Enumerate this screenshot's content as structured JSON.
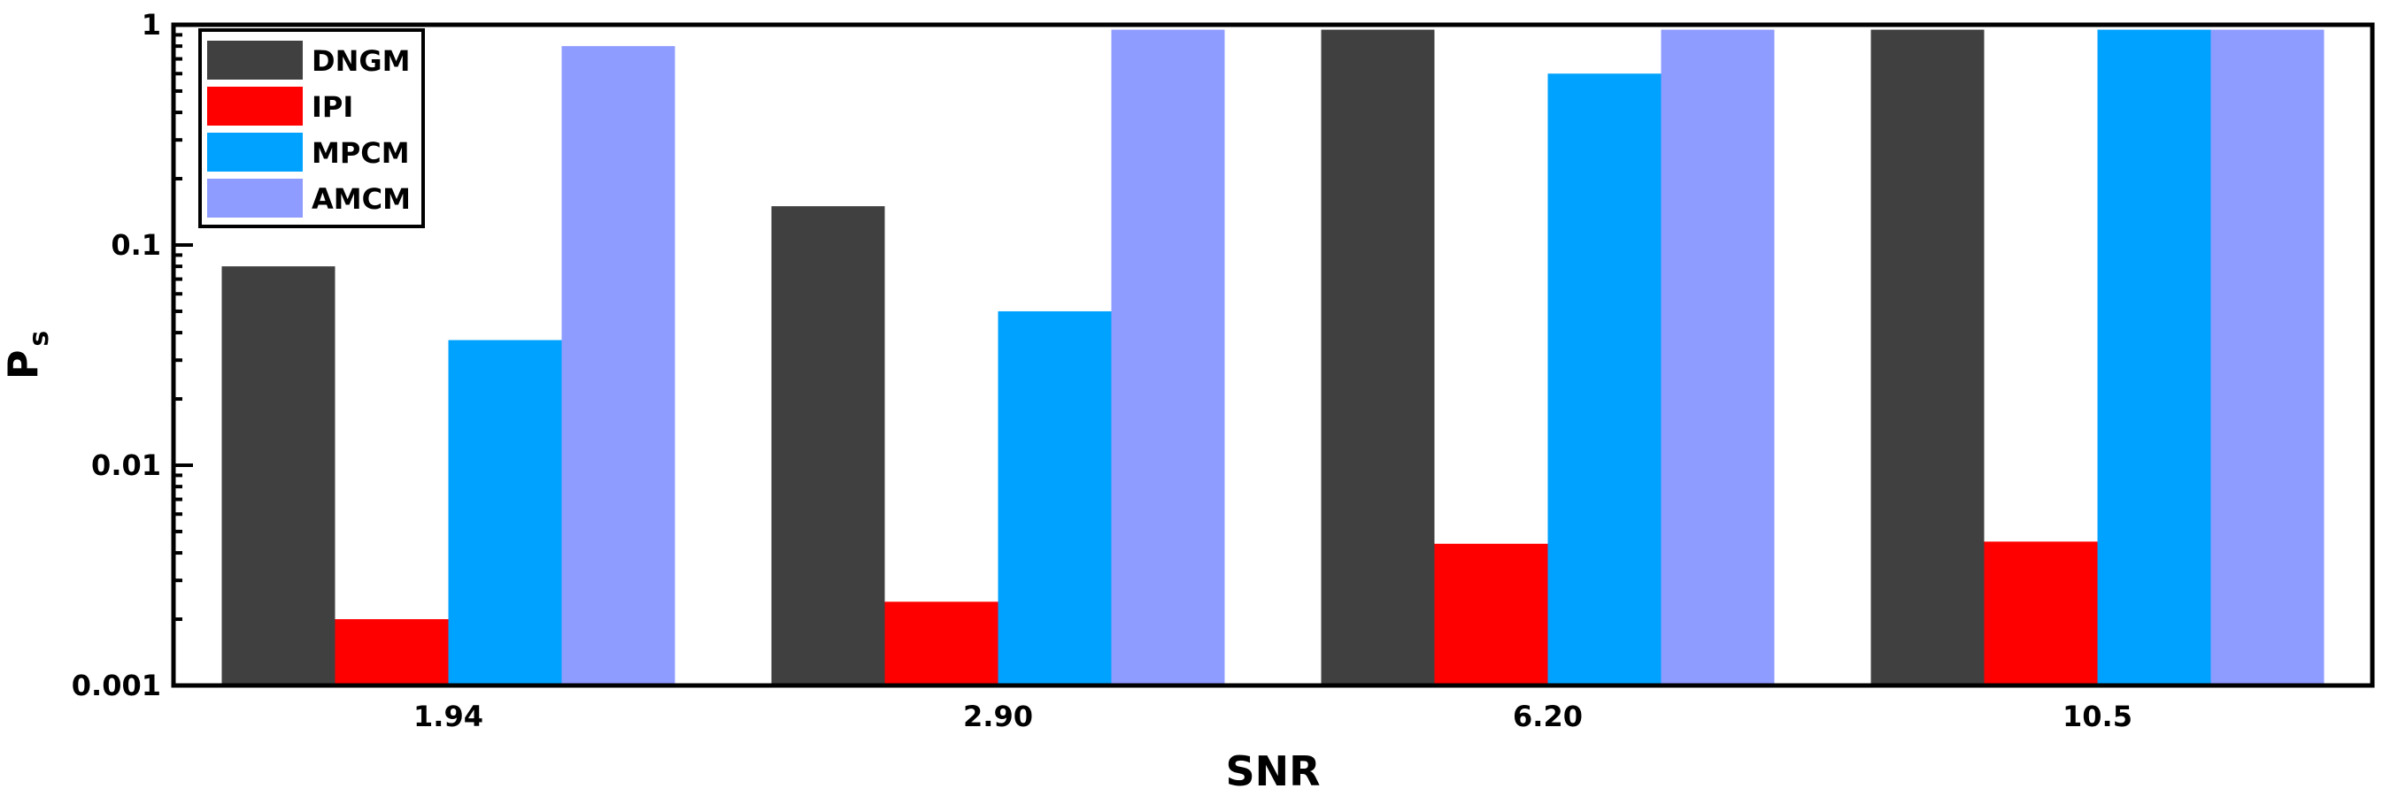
{
  "chart_data": {
    "type": "bar",
    "categories": [
      "1.94",
      "2.90",
      "6.20",
      "10.5"
    ],
    "series": [
      {
        "name": "DNGM",
        "color": "#404040",
        "values": [
          0.08,
          0.15,
          0.95,
          0.95
        ]
      },
      {
        "name": "IPI",
        "color": "#ff0000",
        "values": [
          0.002,
          0.0024,
          0.0044,
          0.0045
        ]
      },
      {
        "name": "MPCM",
        "color": "#00a2ff",
        "values": [
          0.037,
          0.05,
          0.6,
          0.95
        ]
      },
      {
        "name": "AMCM",
        "color": "#8f9cff",
        "values": [
          0.8,
          0.95,
          0.95,
          0.95
        ]
      }
    ],
    "xlabel": "SNR",
    "ylabel": "P",
    "ylabel_sub": "s",
    "yscale": "log",
    "ylim": [
      0.001,
      1
    ],
    "yticks": [
      {
        "value": 0.001,
        "label": "0.001"
      },
      {
        "value": 0.01,
        "label": "0.01"
      },
      {
        "value": 0.1,
        "label": "0.1"
      },
      {
        "value": 1,
        "label": "1"
      }
    ],
    "grid": false,
    "legend_position": "top-left"
  }
}
